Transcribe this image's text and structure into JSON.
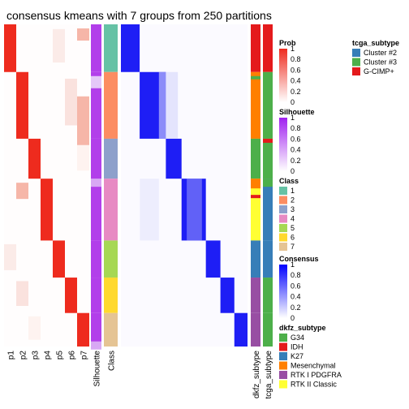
{
  "chart_data": {
    "type": "heatmap",
    "title": "consensus kmeans with 7 groups from 250 partitions",
    "columns": [
      "p1",
      "p2",
      "p3",
      "p4",
      "p5",
      "p6",
      "p7",
      "Silhouette",
      "Class",
      "",
      "dkfz_subtype",
      "tcga_subtype"
    ],
    "group_fraction": [
      0.148,
      0.207,
      0.124,
      0.192,
      0.115,
      0.11,
      0.104
    ],
    "legends": {
      "prob": {
        "title": "Prob",
        "ticks": [
          "1",
          "0.8",
          "0.6",
          "0.4",
          "0.2",
          "0"
        ]
      },
      "silhouette": {
        "title": "Silhouette",
        "ticks": [
          "1",
          "0.8",
          "0.6",
          "0.4",
          "0.2",
          "0"
        ]
      },
      "class": {
        "title": "Class",
        "items": [
          "1",
          "2",
          "3",
          "4",
          "5",
          "6",
          "7"
        ],
        "colors": [
          "#66C2A5",
          "#FC8D62",
          "#8DA0CB",
          "#E78AC3",
          "#A6D854",
          "#FFD92F",
          "#E5C494"
        ]
      },
      "consensus": {
        "title": "Consensus",
        "ticks": [
          "1",
          "0.8",
          "0.6",
          "0.4",
          "0.2",
          "0"
        ]
      },
      "dkfz_subtype": {
        "title": "dkfz_subtype",
        "items": [
          "G34",
          "IDH",
          "K27",
          "Mesenchymal",
          "RTK I PDGFRA",
          "RTK II Classic"
        ],
        "colors": [
          "#4DAF4A",
          "#E41A1C",
          "#377EB8",
          "#FF7F00",
          "#984EA3",
          "#FFFF33"
        ]
      },
      "tcga_subtype": {
        "title": "tcga_subtype",
        "items": [
          "Cluster #2",
          "Cluster #3",
          "G-CIMP+"
        ],
        "colors": [
          "#377EB8",
          "#4DAF4A",
          "#E41A1C"
        ]
      }
    },
    "dkfz_blocks": [
      {
        "group": 1,
        "value": "IDH"
      },
      {
        "group": 2,
        "value": "Mesenchymal"
      },
      {
        "group": 3,
        "value": "G34"
      },
      {
        "group": 4,
        "value": "RTK II Classic"
      },
      {
        "group": 5,
        "value": "K27"
      },
      {
        "group": 6,
        "value": "RTK I PDGFRA"
      },
      {
        "group": 7,
        "value": "RTK I PDGFRA"
      }
    ],
    "tcga_blocks": [
      {
        "group": 1,
        "value": "G-CIMP+"
      },
      {
        "group": 2,
        "value": "Cluster #3"
      },
      {
        "group": 3,
        "value": "Cluster #3"
      },
      {
        "group": 4,
        "value": "Cluster #2"
      },
      {
        "group": 5,
        "value": "Cluster #2"
      },
      {
        "group": 6,
        "value": "Cluster #3"
      },
      {
        "group": 7,
        "value": "Cluster #3"
      }
    ]
  }
}
